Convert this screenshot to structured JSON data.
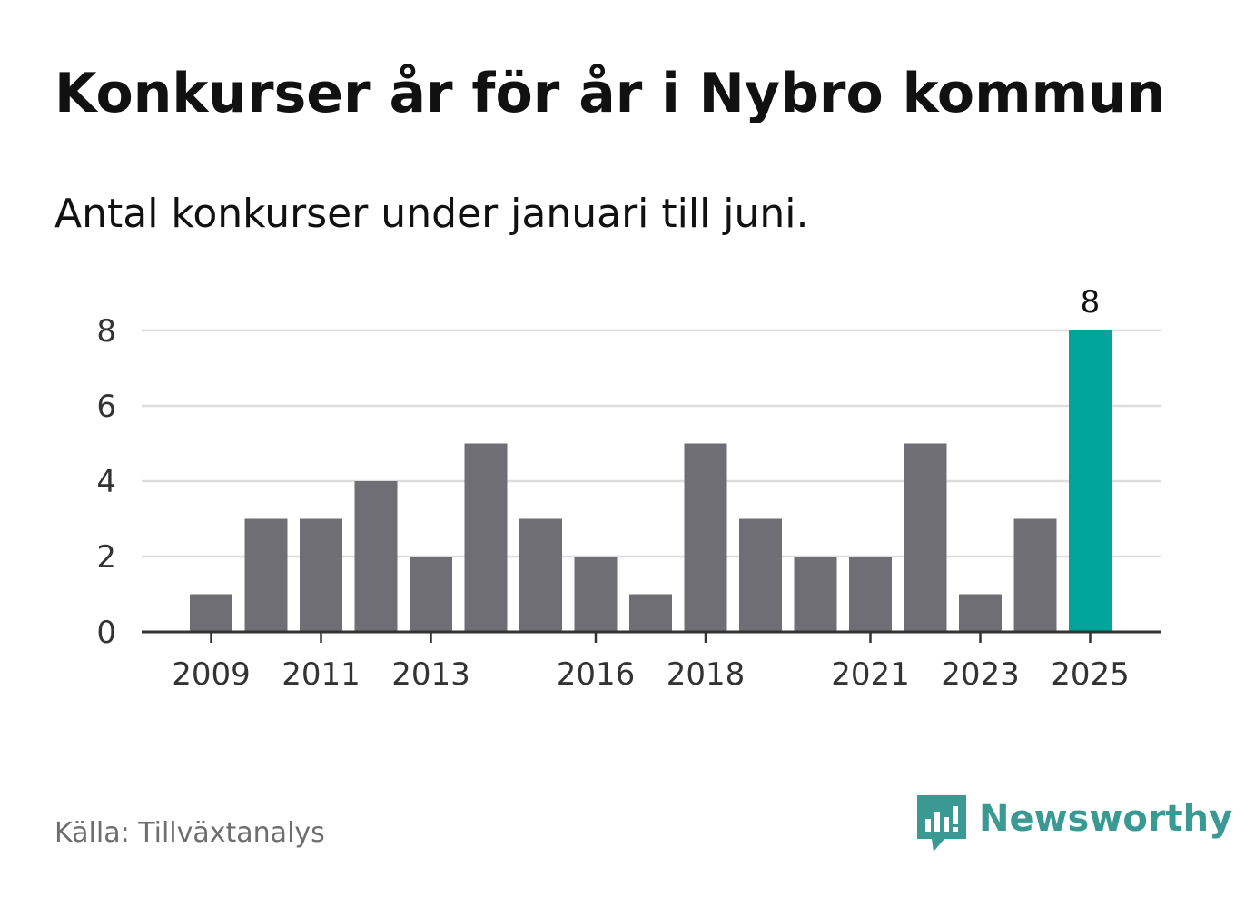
{
  "title": "Konkurser år för år i Nybro kommun",
  "subtitle": "Antal konkurser under januari till juni.",
  "source": "Källa: Tillväxtanalys",
  "brand": {
    "name": "Newsworthy",
    "icon": "newsworthy-logo-icon",
    "color": "#3a9a93"
  },
  "chart_data": {
    "type": "bar",
    "categories": [
      "2009",
      "2010",
      "2011",
      "2012",
      "2013",
      "2014",
      "2015",
      "2016",
      "2017",
      "2018",
      "2019",
      "2020",
      "2021",
      "2022",
      "2023",
      "2024",
      "2025"
    ],
    "values": [
      1,
      3,
      3,
      4,
      2,
      5,
      3,
      2,
      1,
      5,
      3,
      2,
      2,
      5,
      1,
      3,
      8
    ],
    "x_tick_labels": [
      "2009",
      "2011",
      "2013",
      "2016",
      "2018",
      "2021",
      "2023",
      "2025"
    ],
    "y_ticks": [
      0,
      2,
      4,
      6,
      8
    ],
    "ylim": [
      0,
      8
    ],
    "grid": true,
    "highlight": {
      "category": "2025",
      "value_label": "8"
    },
    "colors": {
      "bar": "#6f6e75",
      "highlight": "#00a49a",
      "grid": "#dddddd",
      "axis": "#333333"
    }
  }
}
